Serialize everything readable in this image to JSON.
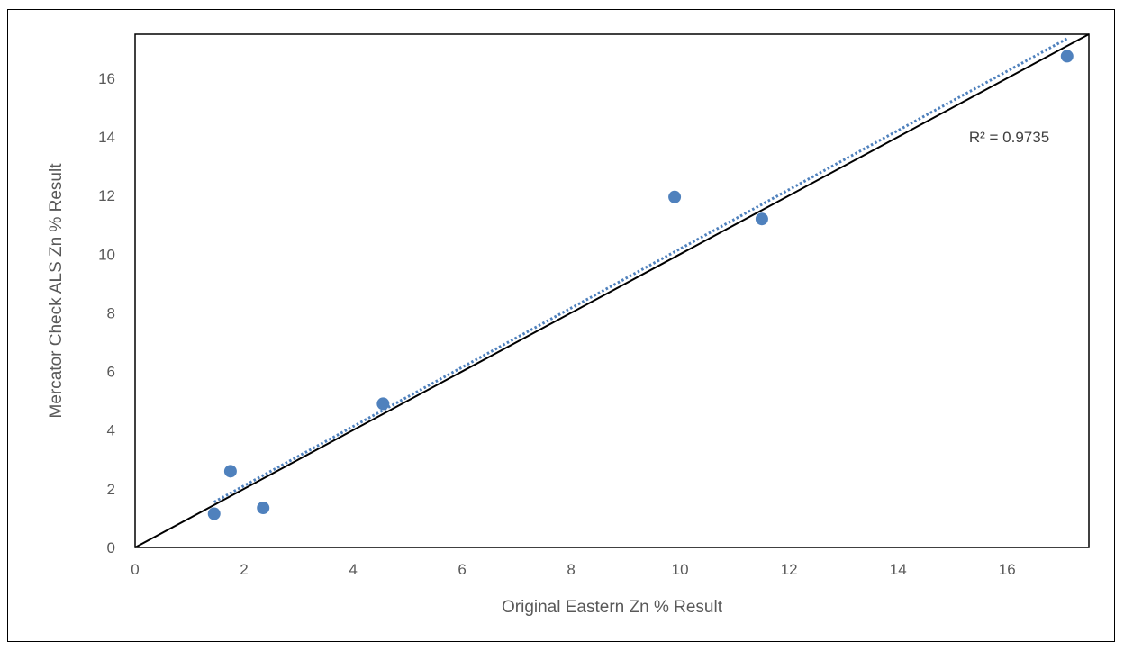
{
  "chart_data": {
    "type": "scatter",
    "title": "",
    "xlabel": "Original Eastern Zn % Result",
    "ylabel": "Mercator Check ALS Zn % Result",
    "xlim": [
      0,
      17.5
    ],
    "ylim": [
      0,
      17.5
    ],
    "x_ticks": [
      0,
      2,
      4,
      6,
      8,
      10,
      12,
      14,
      16
    ],
    "y_ticks": [
      0,
      2,
      4,
      6,
      8,
      10,
      12,
      14,
      16
    ],
    "grid": false,
    "legend": "none",
    "series": [
      {
        "x": [
          1.45,
          1.75,
          2.35,
          4.55,
          9.9,
          11.5,
          17.1
        ],
        "y": [
          1.15,
          2.6,
          1.35,
          4.9,
          11.95,
          11.2,
          16.75
        ],
        "color": "#4f81bd"
      }
    ],
    "reference_line": {
      "x": [
        0,
        17.5
      ],
      "y": [
        0,
        17.5
      ],
      "color": "#000000"
    },
    "trendline": {
      "x": [
        1.45,
        17.1
      ],
      "y": [
        1.55,
        17.35
      ],
      "color": "#4f81bd",
      "style": "dotted"
    },
    "annotation": {
      "text": "R² = 0.9735",
      "x": 15.3,
      "y": 14.0
    }
  }
}
